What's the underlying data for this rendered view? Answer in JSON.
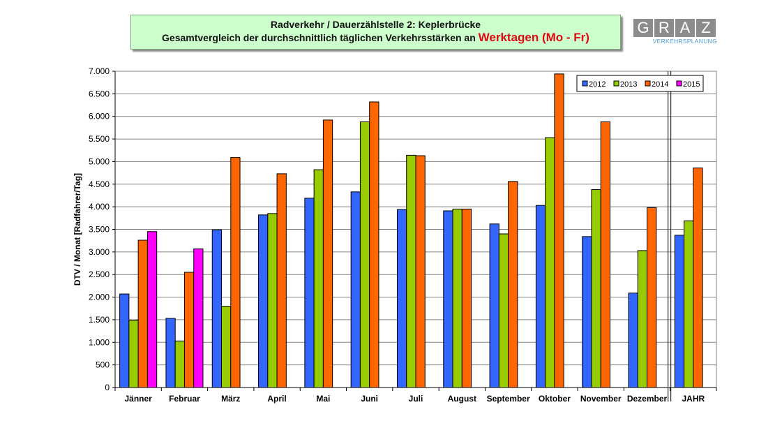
{
  "header": {
    "title_line1": "Radverkehr / Dauerzählstelle 2:  Keplerbrücke",
    "title_line2_prefix": "Gesamtvergleich der durchschnittlich täglichen Verkehrsstärken an ",
    "title_line2_emphasis": "Werktagen (Mo - Fr)"
  },
  "logo": {
    "letters": [
      "G",
      "R",
      "A",
      "Z"
    ],
    "subtitle": "VERKEHRSPLANUNG",
    "letter_bg": "#8c8c8c",
    "subtitle_color": "#4a9bd1"
  },
  "chart_data": {
    "type": "bar",
    "title": "",
    "xlabel": "",
    "ylabel": "DTV / Monat [Radfahrer/Tag]",
    "ylim": [
      0,
      7000
    ],
    "yticks": [
      0,
      500,
      1000,
      1500,
      2000,
      2500,
      3000,
      3500,
      4000,
      4500,
      5000,
      5500,
      6000,
      6500,
      7000
    ],
    "ytick_labels": [
      "0",
      "500",
      "1.000",
      "1.500",
      "2.000",
      "2.500",
      "3.000",
      "3.500",
      "4.000",
      "4.500",
      "5.000",
      "5.500",
      "6.000",
      "6.500",
      "7.000"
    ],
    "grid": "horizontal",
    "legend_position": "top-right",
    "categories": [
      "Jänner",
      "Februar",
      "März",
      "April",
      "Mai",
      "Juni",
      "Juli",
      "August",
      "September",
      "Oktober",
      "November",
      "Dezember",
      "JAHR"
    ],
    "separator_before_last_category": true,
    "series": [
      {
        "name": "2012",
        "color": "#3366ff",
        "values": [
          2070,
          1530,
          3490,
          3820,
          4190,
          4330,
          3940,
          3910,
          3620,
          4030,
          3340,
          2090,
          3370
        ]
      },
      {
        "name": "2013",
        "color": "#99cc00",
        "values": [
          1490,
          1030,
          1800,
          3850,
          4820,
          5880,
          5140,
          3950,
          3400,
          5530,
          4380,
          3030,
          3690
        ]
      },
      {
        "name": "2014",
        "color": "#ff6600",
        "values": [
          3260,
          2550,
          5090,
          4730,
          5920,
          6320,
          5130,
          3950,
          4560,
          6940,
          5880,
          3980,
          4860
        ]
      },
      {
        "name": "2015",
        "color": "#ff00ff",
        "values": [
          3450,
          3070,
          null,
          null,
          null,
          null,
          null,
          null,
          null,
          null,
          null,
          null,
          null
        ]
      }
    ]
  }
}
